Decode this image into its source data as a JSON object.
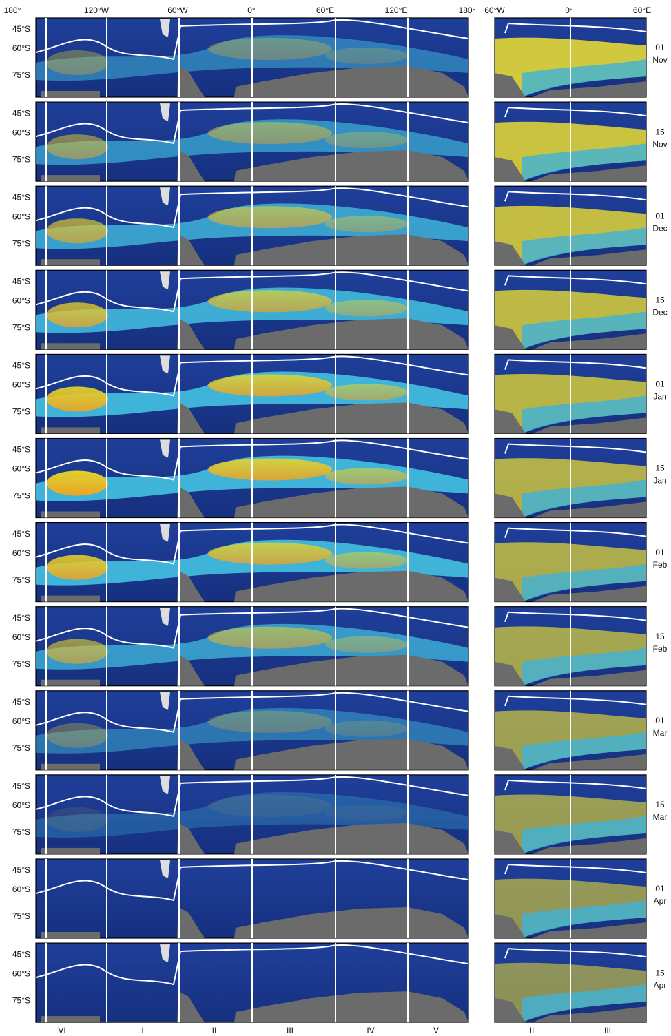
{
  "axes": {
    "top_longitudes": [
      "180°",
      "120°W",
      "60°W",
      "0°",
      "60°E",
      "120°E",
      "180°"
    ],
    "right_longitudes": [
      "60°W",
      "0°",
      "60°E"
    ],
    "latitudes": [
      "45°S",
      "60°S",
      "75°S"
    ]
  },
  "panels": [
    {
      "day": "01",
      "month": "Nov"
    },
    {
      "day": "15",
      "month": "Nov"
    },
    {
      "day": "01",
      "month": "Dec"
    },
    {
      "day": "15",
      "month": "Dec"
    },
    {
      "day": "01",
      "month": "Jan"
    },
    {
      "day": "15",
      "month": "Jan"
    },
    {
      "day": "01",
      "month": "Feb"
    },
    {
      "day": "15",
      "month": "Feb"
    },
    {
      "day": "01",
      "month": "Mar"
    },
    {
      "day": "15",
      "month": "Mar"
    },
    {
      "day": "01",
      "month": "Apr"
    },
    {
      "day": "15",
      "month": "Apr"
    }
  ],
  "sectors": {
    "left": [
      "VI",
      "I",
      "II",
      "III",
      "IV",
      "V"
    ],
    "right": [
      "II",
      "III"
    ]
  }
}
